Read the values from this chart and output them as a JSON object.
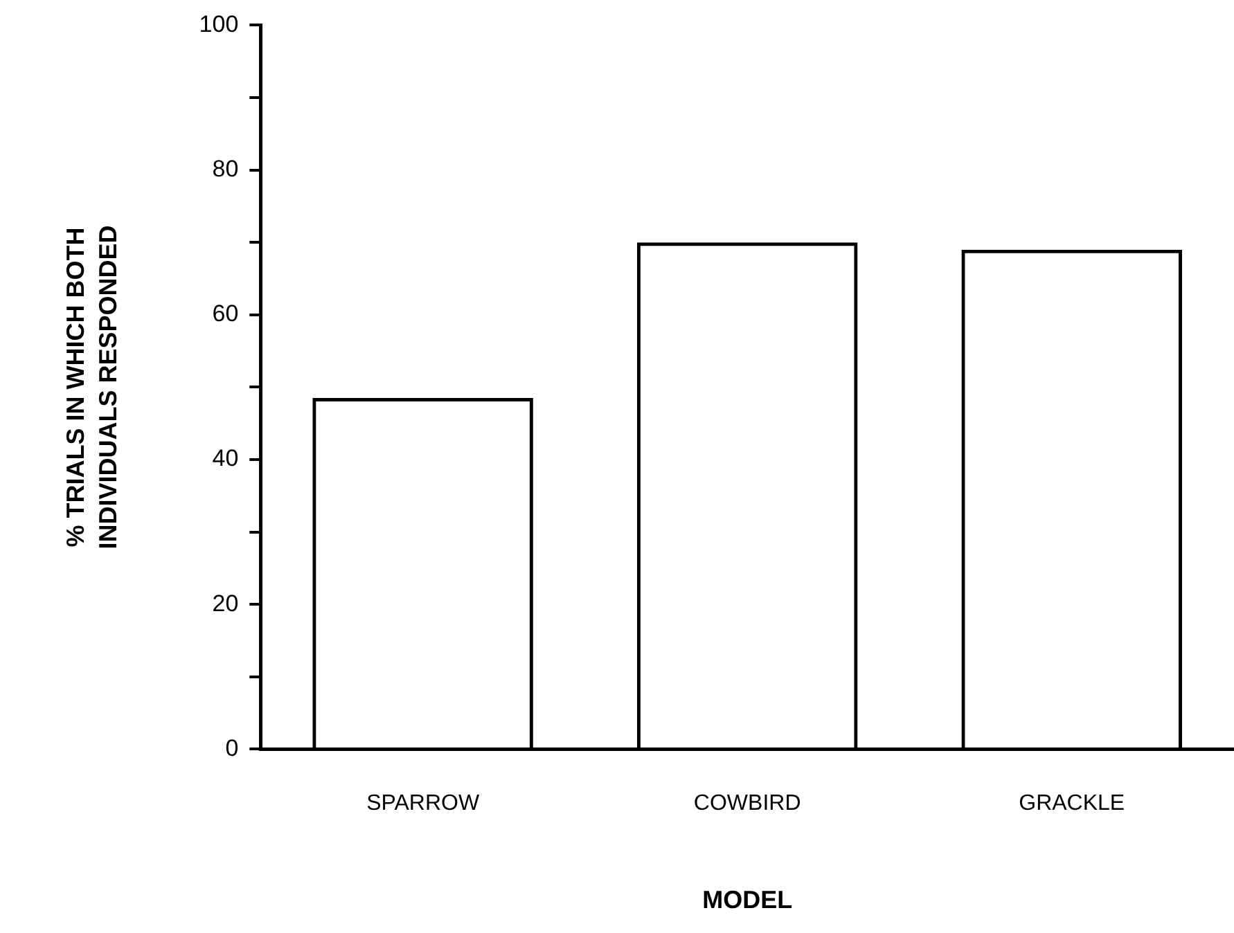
{
  "chart_data": {
    "type": "bar",
    "xlabel": "MODEL",
    "ylabel": "% TRIALS IN WHICH BOTH\nINDIVIDUALS RESPONDED",
    "categories": [
      "SPARROW",
      "COWBIRD",
      "GRACKLE"
    ],
    "values": [
      48.5,
      70,
      69
    ],
    "color": "#000000",
    "ylim": [
      0,
      100
    ],
    "yticks": [
      0,
      {
        "value": 10,
        "label": null
      },
      20,
      {
        "value": 30,
        "label": null
      },
      40,
      {
        "value": 50,
        "label": null
      },
      60,
      {
        "value": 70,
        "label": null
      },
      80,
      {
        "value": 90,
        "label": null
      },
      100
    ],
    "grid": false,
    "legend": false
  }
}
